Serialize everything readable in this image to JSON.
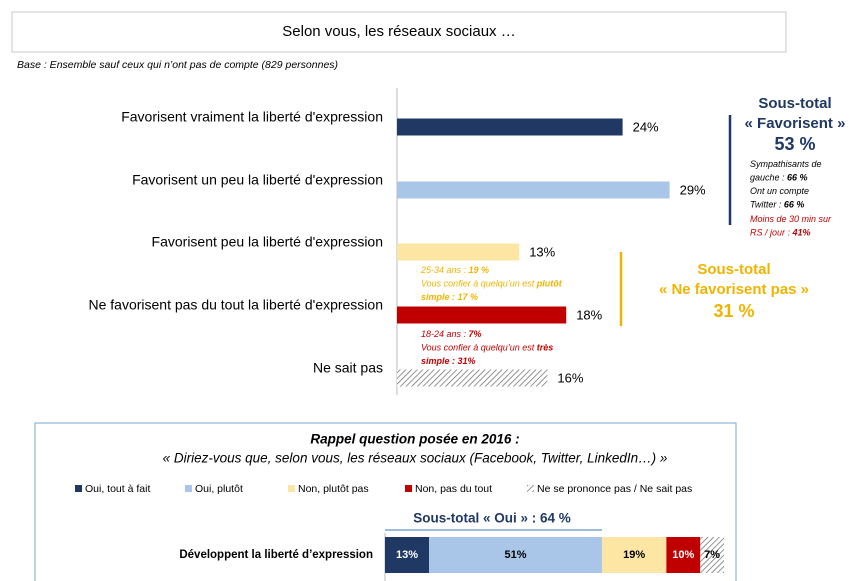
{
  "header": {
    "title": "Selon vous, les réseaux sociaux …",
    "base": "Base : Ensemble sauf ceux qui n’ont pas de compte (829 personnes)"
  },
  "chart_data": [
    {
      "type": "bar",
      "categories": [
        "Favorisent vraiment la liberté d'expression",
        "Favorisent un peu la liberté d'expression",
        "Favorisent peu la liberté d'expression",
        "Ne favorisent pas du tout la liberté d'expression",
        "Ne sait pas"
      ],
      "values": [
        24,
        29,
        13,
        18,
        16
      ],
      "value_labels": [
        "24%",
        "29%",
        "13%",
        "18%",
        "16%"
      ],
      "colors": [
        "#1f3864",
        "#a9c6e8",
        "#fde5a3",
        "#c00000",
        "hatched"
      ]
    },
    {
      "type": "stacked_bar",
      "title": "Rappel question posée en 2016 :",
      "subtitle": "« Diriez-vous que, selon vous, les réseaux sociaux (Facebook, Twitter, LinkedIn…) »",
      "categories": [
        "Développent la liberté d’expression"
      ],
      "annotation": "Sous-total « Oui » : 64 %",
      "series": [
        {
          "name": "Oui, tout à fait",
          "color": "#1f3864",
          "values": [
            13
          ],
          "value_labels": [
            "13%"
          ]
        },
        {
          "name": "Oui, plutôt",
          "color": "#a9c6e8",
          "values": [
            51
          ],
          "value_labels": [
            "51%"
          ]
        },
        {
          "name": "Non, plutôt pas",
          "color": "#fde5a3",
          "values": [
            19
          ],
          "value_labels": [
            "19%"
          ]
        },
        {
          "name": "Non, pas du tout",
          "color": "#c00000",
          "values": [
            10
          ],
          "value_labels": [
            "10%"
          ]
        },
        {
          "name": "Ne se prononce pas / Ne sait pas",
          "color": "hatched",
          "values": [
            7
          ],
          "value_labels": [
            "7%"
          ]
        }
      ]
    }
  ],
  "subtotals": [
    {
      "label": "Sous-total",
      "name": "« Favorisent »",
      "value": "53 %",
      "color": "#1f3864"
    },
    {
      "label": "Sous-total",
      "name": "« Ne favorisent pas »",
      "value": "31 %",
      "color": "#f0b400"
    }
  ],
  "notes": [
    {
      "color": "#f0b400",
      "lines": [
        [
          {
            "t": "25-34 ans : ",
            "b": false
          },
          {
            "t": "19 %",
            "b": true
          }
        ],
        [
          {
            "t": "Vous confier à quelqu’un est ",
            "b": false
          },
          {
            "t": "plutôt",
            "b": true
          }
        ],
        [
          {
            "t": "simple : 17 %",
            "b": true
          }
        ]
      ]
    },
    {
      "color": "#c00000",
      "lines": [
        [
          {
            "t": "18-24 ans : ",
            "b": false
          },
          {
            "t": "7%",
            "b": true
          }
        ],
        [
          {
            "t": "Vous confier à quelqu’un est ",
            "b": false
          },
          {
            "t": "très",
            "b": true
          }
        ],
        [
          {
            "t": "simple : 31%",
            "b": true
          }
        ]
      ]
    },
    {
      "color": "#000000",
      "lines": [
        [
          {
            "t": "Sympathisants de",
            "b": false
          }
        ],
        [
          {
            "t": "gauche : ",
            "b": false
          },
          {
            "t": "66 %",
            "b": true
          }
        ],
        [
          {
            "t": "Ont un compte",
            "b": false
          }
        ],
        [
          {
            "t": "Twitter : ",
            "b": false
          },
          {
            "t": "66 %",
            "b": true
          }
        ]
      ]
    },
    {
      "color": "#c00000",
      "lines": [
        [
          {
            "t": "Moins de 30 min sur",
            "b": false
          }
        ],
        [
          {
            "t": "RS / jour : ",
            "b": false
          },
          {
            "t": "41%",
            "b": true
          }
        ]
      ]
    }
  ]
}
